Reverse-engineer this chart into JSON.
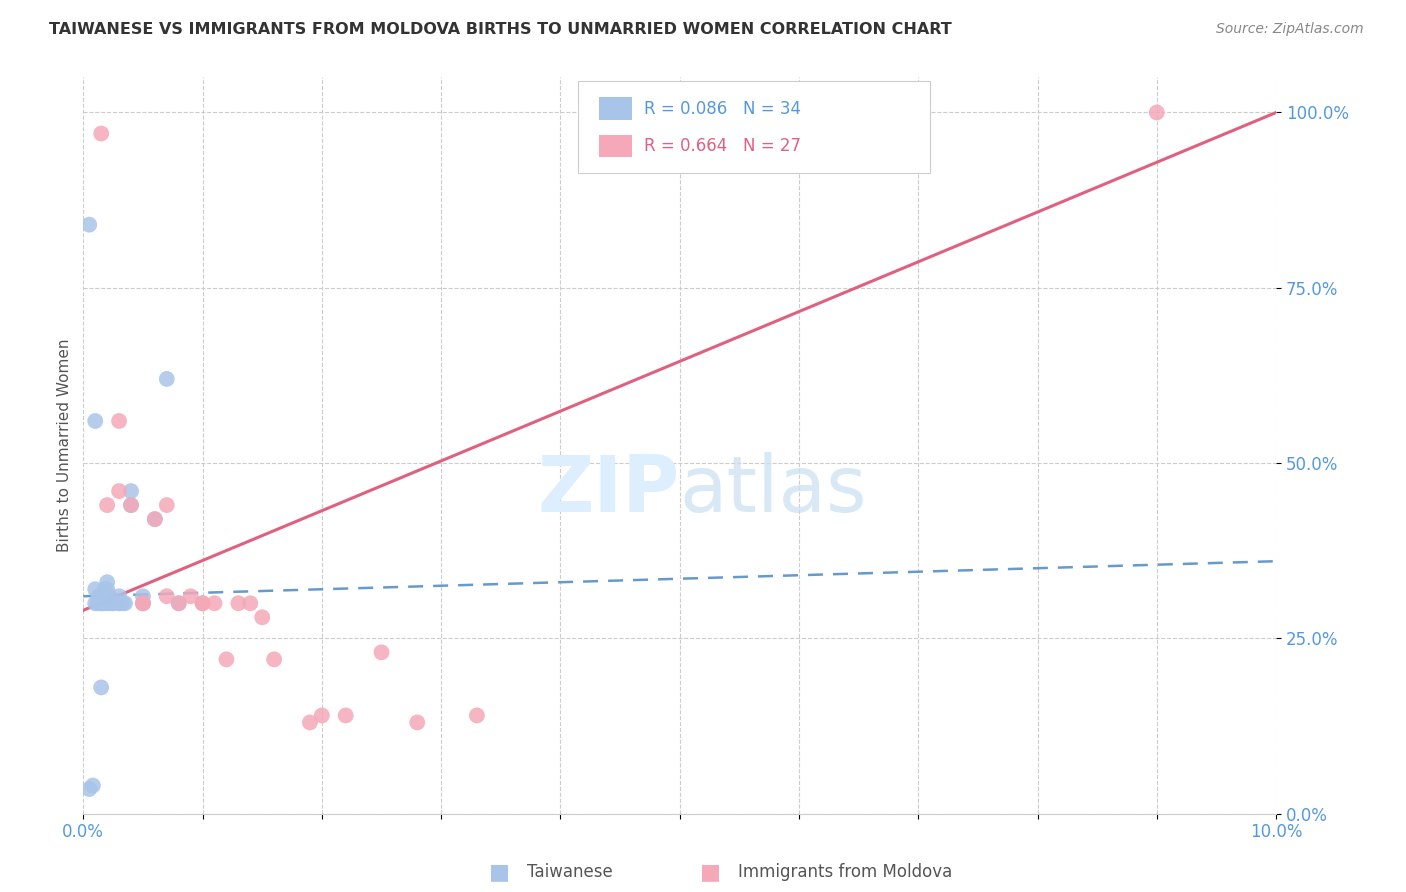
{
  "title": "TAIWANESE VS IMMIGRANTS FROM MOLDOVA BIRTHS TO UNMARRIED WOMEN CORRELATION CHART",
  "source": "Source: ZipAtlas.com",
  "ylabel": "Births to Unmarried Women",
  "xlim": [
    0.0,
    0.1
  ],
  "ylim": [
    0.0,
    1.05
  ],
  "yticks": [
    0.0,
    0.25,
    0.5,
    0.75,
    1.0
  ],
  "ytick_labels": [
    "0.0%",
    "25.0%",
    "50.0%",
    "75.0%",
    "100.0%"
  ],
  "xticks": [
    0.0,
    0.01,
    0.02,
    0.03,
    0.04,
    0.05,
    0.06,
    0.07,
    0.08,
    0.09,
    0.1
  ],
  "xtick_labels": [
    "0.0%",
    "",
    "",
    "",
    "",
    "",
    "",
    "",
    "",
    "",
    "10.0%"
  ],
  "taiwanese_R": 0.086,
  "taiwanese_N": 34,
  "moldova_R": 0.664,
  "moldova_N": 27,
  "taiwanese_color": "#a8c4e8",
  "moldova_color": "#f4a8b8",
  "trend_taiwanese_color": "#6699cc",
  "trend_moldova_color": "#e06080",
  "tick_color": "#5599dd",
  "watermark_color": "#ddeeff",
  "taiwanese_x": [
    0.0005,
    0.0008,
    0.001,
    0.001,
    0.0012,
    0.0013,
    0.0015,
    0.0015,
    0.0016,
    0.0018,
    0.0018,
    0.002,
    0.002,
    0.002,
    0.002,
    0.0022,
    0.0022,
    0.0025,
    0.0025,
    0.003,
    0.003,
    0.003,
    0.0033,
    0.0035,
    0.004,
    0.004,
    0.005,
    0.005,
    0.006,
    0.007,
    0.008,
    0.0005,
    0.001,
    0.0015
  ],
  "taiwanese_y": [
    0.035,
    0.04,
    0.3,
    0.32,
    0.3,
    0.31,
    0.3,
    0.31,
    0.3,
    0.3,
    0.32,
    0.3,
    0.31,
    0.32,
    0.33,
    0.31,
    0.3,
    0.3,
    0.3,
    0.3,
    0.31,
    0.3,
    0.3,
    0.3,
    0.44,
    0.46,
    0.31,
    0.3,
    0.42,
    0.62,
    0.3,
    0.84,
    0.56,
    0.18
  ],
  "moldova_x": [
    0.0015,
    0.002,
    0.003,
    0.003,
    0.004,
    0.005,
    0.005,
    0.006,
    0.007,
    0.007,
    0.008,
    0.009,
    0.01,
    0.01,
    0.011,
    0.012,
    0.013,
    0.014,
    0.015,
    0.016,
    0.019,
    0.02,
    0.022,
    0.025,
    0.028,
    0.033,
    0.09
  ],
  "moldova_y": [
    0.97,
    0.44,
    0.46,
    0.56,
    0.44,
    0.3,
    0.3,
    0.42,
    0.44,
    0.31,
    0.3,
    0.31,
    0.3,
    0.3,
    0.3,
    0.22,
    0.3,
    0.3,
    0.28,
    0.22,
    0.13,
    0.14,
    0.14,
    0.23,
    0.13,
    0.14,
    1.0
  ],
  "tw_trend_x0": 0.0,
  "tw_trend_y0": 0.31,
  "tw_trend_x1": 0.1,
  "tw_trend_y1": 0.36,
  "mo_trend_x0": 0.0,
  "mo_trend_y0": 0.29,
  "mo_trend_x1": 0.1,
  "mo_trend_y1": 1.0
}
